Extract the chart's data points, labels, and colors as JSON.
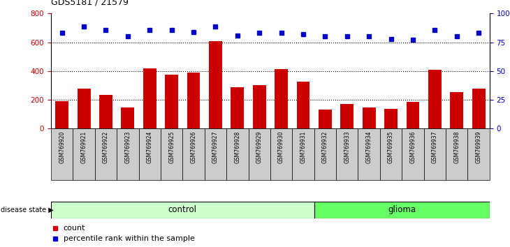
{
  "title": "GDS5181 / 21579",
  "samples": [
    "GSM769920",
    "GSM769921",
    "GSM769922",
    "GSM769923",
    "GSM769924",
    "GSM769925",
    "GSM769926",
    "GSM769927",
    "GSM769928",
    "GSM769929",
    "GSM769930",
    "GSM769931",
    "GSM769932",
    "GSM769933",
    "GSM769934",
    "GSM769935",
    "GSM769936",
    "GSM769937",
    "GSM769938",
    "GSM769939"
  ],
  "counts": [
    190,
    275,
    235,
    145,
    420,
    375,
    390,
    610,
    285,
    300,
    415,
    325,
    130,
    170,
    145,
    135,
    185,
    410,
    255,
    275
  ],
  "percentiles": [
    83,
    89,
    86,
    80,
    86,
    86,
    84,
    89,
    81,
    83,
    83,
    82,
    80,
    80,
    80,
    78,
    77,
    86,
    80,
    83
  ],
  "control_count": 12,
  "glioma_count": 8,
  "bar_color": "#cc0000",
  "dot_color": "#0000cc",
  "control_color": "#ccffcc",
  "glioma_color": "#66ff66",
  "ylim_left": [
    0,
    800
  ],
  "ylim_right": [
    0,
    100
  ],
  "yticks_left": [
    0,
    200,
    400,
    600,
    800
  ],
  "yticks_right": [
    0,
    25,
    50,
    75,
    100
  ],
  "grid_values": [
    200,
    400,
    600
  ],
  "legend_count_label": "count",
  "legend_pct_label": "percentile rank within the sample",
  "disease_state_label": "disease state",
  "control_label": "control",
  "glioma_label": "glioma",
  "bg_color": "#ffffff",
  "tick_label_bg": "#cccccc"
}
